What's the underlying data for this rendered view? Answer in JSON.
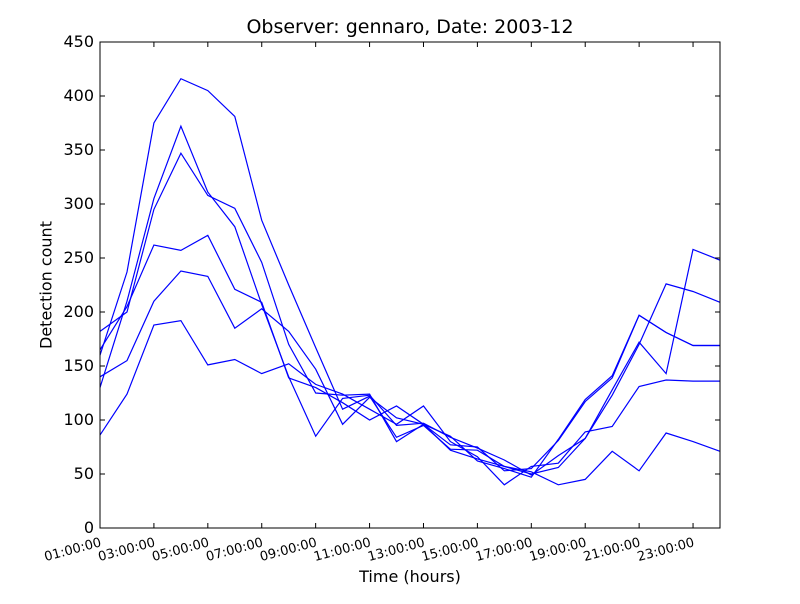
{
  "chart_data": {
    "type": "line",
    "title": "Observer: gennaro, Date: 2003-12",
    "xlabel": "Time (hours)",
    "ylabel": "Detection count",
    "x": [
      1,
      2,
      3,
      4,
      5,
      6,
      7,
      8,
      9,
      10,
      11,
      12,
      13,
      14,
      15,
      16,
      17,
      18,
      19,
      20,
      21,
      22,
      23,
      24
    ],
    "xlim": [
      1,
      24
    ],
    "ylim": [
      0,
      450
    ],
    "x_ticks": [
      {
        "value": 1,
        "label": "01:00:00"
      },
      {
        "value": 3,
        "label": "03:00:00"
      },
      {
        "value": 5,
        "label": "05:00:00"
      },
      {
        "value": 7,
        "label": "07:00:00"
      },
      {
        "value": 9,
        "label": "09:00:00"
      },
      {
        "value": 11,
        "label": "11:00:00"
      },
      {
        "value": 13,
        "label": "13:00:00"
      },
      {
        "value": 15,
        "label": "15:00:00"
      },
      {
        "value": 17,
        "label": "17:00:00"
      },
      {
        "value": 19,
        "label": "19:00:00"
      },
      {
        "value": 21,
        "label": "21:00:00"
      },
      {
        "value": 23,
        "label": "23:00:00"
      }
    ],
    "y_ticks": [
      0,
      50,
      100,
      150,
      200,
      250,
      300,
      350,
      400,
      450
    ],
    "grid": false,
    "legend": "none",
    "line_color": "#0000ff",
    "series": [
      {
        "values": [
          160,
          237,
          375,
          416,
          405,
          381,
          285,
          225,
          167,
          110,
          122,
          84,
          95,
          73,
          72,
          57,
          52,
          40,
          45,
          71,
          53,
          88,
          80,
          71
        ]
      },
      {
        "values": [
          130,
          210,
          305,
          372,
          311,
          279,
          207,
          140,
          85,
          120,
          123,
          95,
          97,
          84,
          74,
          63,
          49,
          67,
          83,
          128,
          172,
          143,
          258,
          248
        ]
      },
      {
        "values": [
          182,
          200,
          295,
          347,
          308,
          296,
          246,
          170,
          125,
          123,
          124,
          80,
          96,
          72,
          64,
          57,
          50,
          56,
          83,
          123,
          170,
          226,
          219,
          209
        ]
      },
      {
        "values": [
          86,
          124,
          188,
          192,
          151,
          156,
          143,
          152,
          133,
          124,
          110,
          96,
          113,
          80,
          66,
          40,
          57,
          60,
          89,
          94,
          131,
          137,
          136,
          136
        ]
      },
      {
        "values": [
          140,
          155,
          210,
          238,
          233,
          185,
          203,
          182,
          147,
          96,
          121,
          102,
          96,
          77,
          75,
          53,
          55,
          81,
          117,
          139,
          197,
          181,
          169,
          169
        ]
      },
      {
        "values": [
          165,
          205,
          262,
          257,
          271,
          221,
          209,
          139,
          130,
          116,
          100,
          113,
          96,
          85,
          62,
          55,
          47,
          82,
          119,
          141,
          197,
          181,
          169,
          169
        ]
      }
    ]
  }
}
